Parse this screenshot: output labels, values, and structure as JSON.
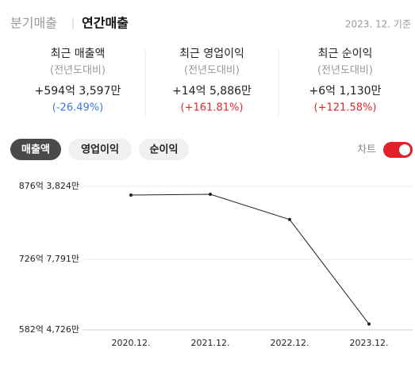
{
  "tabs": [
    "분기매출",
    "연간매출"
  ],
  "basis": "2023. 12. 기준",
  "summary": [
    {
      "title": "최근 매출액",
      "sub": "(전년도대비)",
      "value": "+594억 3,597만",
      "change": "(-26.49%)",
      "trend": "down"
    },
    {
      "title": "최근 영업이익",
      "sub": "(전년도대비)",
      "value": "+14억 5,886만",
      "change": "(+161.81%)",
      "trend": "up"
    },
    {
      "title": "최근 순이익",
      "sub": "(전년도대비)",
      "value": "+6억 1,130만",
      "change": "(+121.58%)",
      "trend": "up"
    }
  ],
  "buttons": [
    "매출액",
    "영업이익",
    "순이익"
  ],
  "selected_button": 0,
  "toggle_label": "차트",
  "toggle_on": true,
  "chart_data": {
    "type": "line",
    "categories": [
      "2020.12.",
      "2021.12.",
      "2022.12.",
      "2023.12."
    ],
    "series": [
      {
        "name": "매출액",
        "color": "#222222",
        "values": [
          8585000,
          8601000,
          8085427,
          5943597
        ]
      }
    ],
    "ylim": [
      5824726,
      8763824
    ],
    "yticks": [
      {
        "value": 5824726,
        "label": "582억 4,726만"
      },
      {
        "value": 7267791,
        "label": "726억 7,791만"
      },
      {
        "value": 8763824,
        "label": "876억 3,824만"
      }
    ],
    "grid": true
  }
}
